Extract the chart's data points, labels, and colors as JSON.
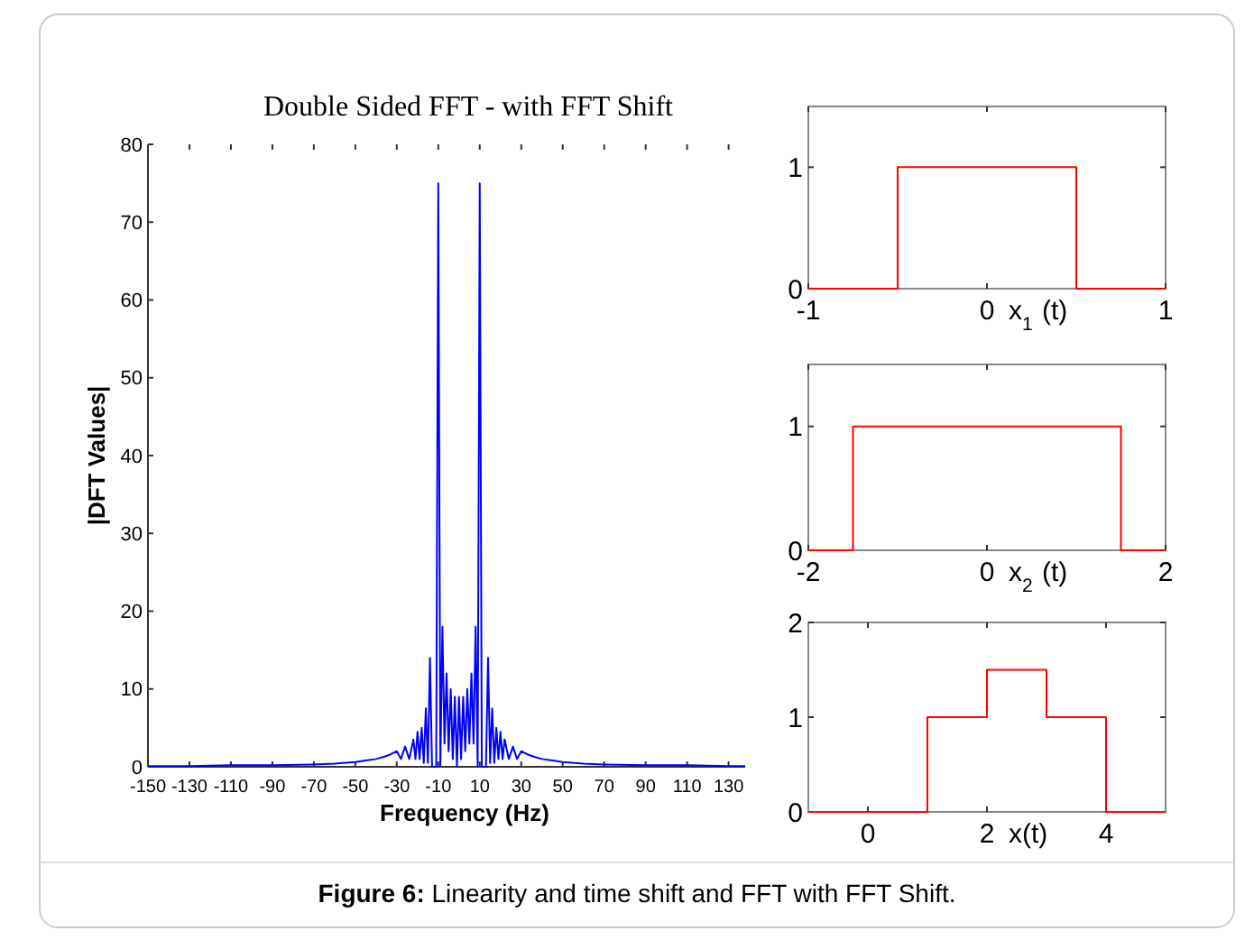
{
  "chart_data": [
    {
      "type": "line",
      "title": "Double Sided FFT - with FFT Shift",
      "xlabel": "Frequency (Hz)",
      "ylabel": "|DFT Values|",
      "xlim": [
        -150,
        138
      ],
      "xticks": [
        -150,
        -130,
        -110,
        -90,
        -70,
        -50,
        -30,
        -10,
        10,
        30,
        50,
        70,
        90,
        110,
        130
      ],
      "ylim": [
        0,
        80
      ],
      "yticks": [
        0,
        10,
        20,
        30,
        40,
        50,
        60,
        70,
        80
      ],
      "annotations": [
        "Figure 6: Linearity and time shift and FFT with FFT Shift."
      ],
      "series": [
        {
          "color": "#0000ff",
          "x": [
            -150,
            -130,
            -110,
            -90,
            -70,
            -60,
            -50,
            -45,
            -40,
            -36,
            -33,
            -30,
            -28,
            -26,
            -24,
            -22,
            -21,
            -20,
            -19,
            -18,
            -17,
            -16,
            -15,
            -14,
            -13,
            -12,
            -11,
            -10,
            -9,
            -8,
            -7,
            -6,
            -5,
            -4,
            -3,
            -2,
            -1,
            0,
            1,
            2,
            3,
            4,
            5,
            6,
            7,
            8,
            9,
            10,
            11,
            12,
            13,
            14,
            15,
            16,
            17,
            18,
            19,
            20,
            21,
            22,
            24,
            26,
            28,
            30,
            33,
            36,
            40,
            45,
            50,
            60,
            70,
            90,
            110,
            130,
            138
          ],
          "values": [
            0.1,
            0.1,
            0.2,
            0.2,
            0.3,
            0.4,
            0.6,
            0.8,
            1,
            1.3,
            1.6,
            2,
            1,
            2.6,
            1,
            3.5,
            1,
            4.5,
            1,
            5,
            0.5,
            7.5,
            0.5,
            14,
            0,
            0,
            0,
            75,
            0,
            18,
            3,
            12,
            2,
            10,
            1,
            9,
            0,
            9,
            1,
            9,
            2,
            10,
            3,
            12,
            3,
            18,
            0,
            75,
            0,
            0,
            0,
            14,
            0.5,
            7.5,
            0.5,
            5,
            1,
            4.5,
            1,
            3.5,
            1,
            2.6,
            1,
            2,
            1.6,
            1.3,
            1,
            0.8,
            0.6,
            0.4,
            0.3,
            0.2,
            0.2,
            0.1,
            0.1
          ]
        }
      ]
    },
    {
      "type": "line",
      "xlabel": "x$_{1}$(t)",
      "xlim": [
        -1,
        1
      ],
      "xticks": [
        -1,
        0,
        1
      ],
      "ylim": [
        0,
        1.5
      ],
      "yticks": [
        0,
        1
      ],
      "series": [
        {
          "color": "#ff0000",
          "x": [
            -1,
            -0.5,
            -0.5,
            0.5,
            0.5,
            1
          ],
          "values": [
            0,
            0,
            1,
            1,
            0,
            0
          ]
        }
      ]
    },
    {
      "type": "line",
      "xlabel": "x$_{2}$(t)",
      "xlim": [
        -2,
        2
      ],
      "xticks": [
        -2,
        0,
        2
      ],
      "ylim": [
        0,
        1.5
      ],
      "yticks": [
        0,
        1
      ],
      "series": [
        {
          "color": "#ff0000",
          "x": [
            -2,
            -1.5,
            -1.5,
            1.5,
            1.5,
            2
          ],
          "values": [
            0,
            0,
            1,
            1,
            0,
            0
          ]
        }
      ]
    },
    {
      "type": "line",
      "xlabel": "x(t)",
      "xlim": [
        -1,
        5
      ],
      "xticks": [
        0,
        2,
        4
      ],
      "ylim": [
        0,
        2
      ],
      "yticks": [
        0,
        1,
        2
      ],
      "series": [
        {
          "color": "#ff0000",
          "x": [
            -1,
            1,
            1,
            2,
            2,
            3,
            3,
            4,
            4,
            5
          ],
          "values": [
            0,
            0,
            1,
            1,
            1.5,
            1.5,
            1,
            1,
            0,
            0
          ]
        }
      ]
    }
  ]
}
